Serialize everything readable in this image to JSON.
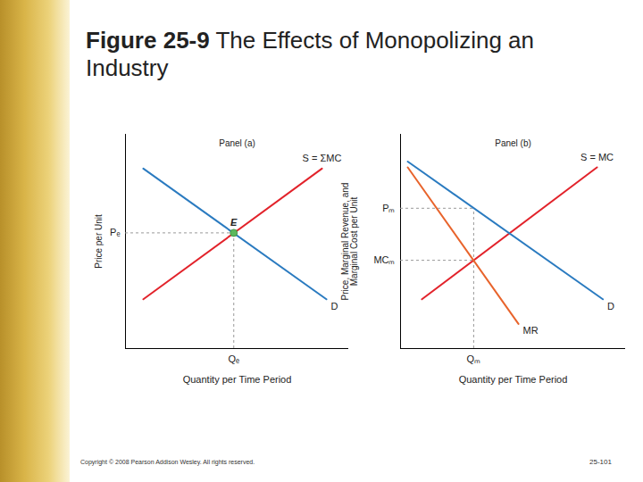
{
  "figure": "Figure 25-9",
  "title": "The Effects of Monopolizing an Industry",
  "copyright": "Copyright © 2008 Pearson Addison Wesley. All rights reserved.",
  "page": "25-101",
  "chart_data": [
    {
      "type": "line",
      "title": "Panel (a)",
      "xlabel": "Quantity per Time Period",
      "ylabel": "Price per Unit",
      "xlim": [
        0,
        10
      ],
      "ylim": [
        0,
        10
      ],
      "xticks": [
        {
          "value": 4.85,
          "label": "Qₑ"
        }
      ],
      "yticks": [
        {
          "value": 5.4,
          "label": "Pₑ"
        }
      ],
      "grid": false,
      "series": [
        {
          "name": "S = ΣMC",
          "color": "#e2232b",
          "x": [
            0.8,
            8.8
          ],
          "values": [
            2.3,
            8.4
          ]
        },
        {
          "name": "D",
          "color": "#2b7bc0",
          "x": [
            0.8,
            9.0
          ],
          "values": [
            8.4,
            2.3
          ]
        }
      ],
      "points": [
        {
          "label": "E",
          "x": 4.85,
          "y": 5.4,
          "color": "#5cb85c"
        }
      ]
    },
    {
      "type": "line",
      "title": "Panel (b)",
      "xlabel": "Quantity per Time Period",
      "ylabel": "Price, Marginal Revenue, and Marginal Cost per Unit",
      "xlim": [
        0,
        10
      ],
      "ylim": [
        0,
        10
      ],
      "xticks": [
        {
          "value": 3.25,
          "label": "Qₘ"
        }
      ],
      "yticks": [
        {
          "value": 6.55,
          "label": "Pₘ"
        },
        {
          "value": 4.12,
          "label": "MCₘ"
        }
      ],
      "grid": false,
      "series": [
        {
          "name": "S = MC",
          "color": "#e2232b",
          "x": [
            0.95,
            8.73
          ],
          "values": [
            2.3,
            8.46
          ]
        },
        {
          "name": "D",
          "color": "#2b7bc0",
          "x": [
            0.32,
            8.99
          ],
          "values": [
            8.73,
            2.3
          ]
        },
        {
          "name": "MR",
          "color": "#e8642c",
          "x": [
            0.32,
            5.24
          ],
          "values": [
            8.46,
            1.15
          ]
        }
      ]
    }
  ]
}
